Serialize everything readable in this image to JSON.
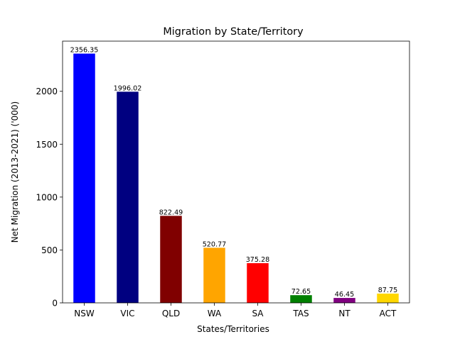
{
  "chart_data": {
    "type": "bar",
    "title": "Migration by State/Territory",
    "xlabel": "States/Territories",
    "ylabel": "Net Migration (2013-2021) ('000)",
    "categories": [
      "NSW",
      "VIC",
      "QLD",
      "WA",
      "SA",
      "TAS",
      "NT",
      "ACT"
    ],
    "values": [
      2356.35,
      1996.02,
      822.49,
      520.77,
      375.28,
      72.65,
      46.45,
      87.75
    ],
    "data_labels": [
      "2356.35",
      "1996.02",
      "822.49",
      "520.77",
      "375.28",
      "72.65",
      "46.45",
      "87.75"
    ],
    "colors": [
      "#0000ff",
      "#000080",
      "#800000",
      "#ffa500",
      "#ff0000",
      "#008000",
      "#800080",
      "#ffd700"
    ],
    "yticks": [
      0,
      500,
      1000,
      1500,
      2000
    ],
    "ytick_labels": [
      "0",
      "500",
      "1000",
      "1500",
      "2000"
    ],
    "ylim": [
      0,
      2474.17
    ],
    "grid": false,
    "legend": "none"
  }
}
